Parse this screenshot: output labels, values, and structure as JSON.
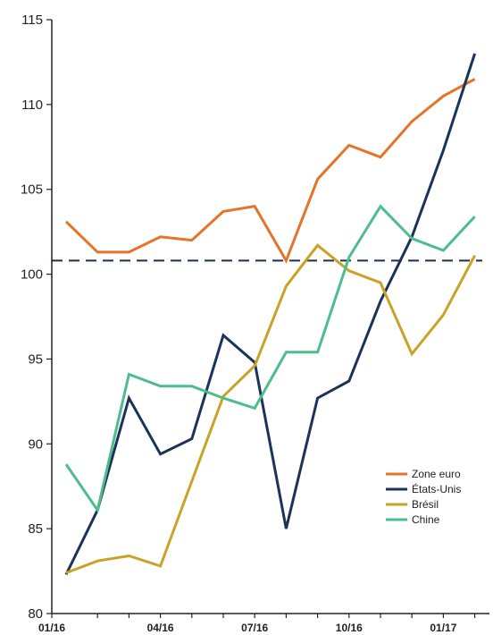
{
  "chart_data": {
    "type": "line",
    "x": [
      "01/16",
      "02/16",
      "03/16",
      "04/16",
      "05/16",
      "06/16",
      "07/16",
      "08/16",
      "09/16",
      "10/16",
      "11/16",
      "12/16",
      "01/17",
      "02/17",
      "03/17"
    ],
    "x_tick_labels": [
      "01/16",
      "04/16",
      "07/16",
      "10/16",
      "01/17"
    ],
    "ylim": [
      80,
      115
    ],
    "y_ticks": [
      80,
      85,
      90,
      95,
      100,
      105,
      110,
      115
    ],
    "grid": false,
    "legend_position": "bottom-right",
    "reference_line": {
      "y": 100.8,
      "style": "dashed",
      "color": "#1b2f4e"
    },
    "series": [
      {
        "name": "Zone euro",
        "color": "#e5732a",
        "values": [
          103.1,
          101.3,
          101.3,
          102.2,
          102.0,
          103.7,
          104.0,
          100.8,
          105.6,
          107.6,
          106.9,
          109.0,
          110.5,
          111.5,
          null
        ]
      },
      {
        "name": "États-Unis",
        "color": "#1b3358",
        "values": [
          82.3,
          86.1,
          92.7,
          89.4,
          90.3,
          96.4,
          94.8,
          85.0,
          92.7,
          93.7,
          98.4,
          102.2,
          107.3,
          113.0,
          null
        ]
      },
      {
        "name": "Brésil",
        "color": "#c9a227",
        "values": [
          82.4,
          83.1,
          83.4,
          82.8,
          87.8,
          92.8,
          94.6,
          99.3,
          101.7,
          100.2,
          99.5,
          95.3,
          97.6,
          101.1,
          null
        ]
      },
      {
        "name": "Chine",
        "color": "#4dbd8e",
        "values": [
          88.8,
          86.1,
          94.1,
          93.4,
          93.4,
          92.7,
          92.1,
          95.4,
          95.4,
          101.0,
          104.0,
          102.1,
          101.4,
          103.4,
          null
        ]
      }
    ]
  }
}
